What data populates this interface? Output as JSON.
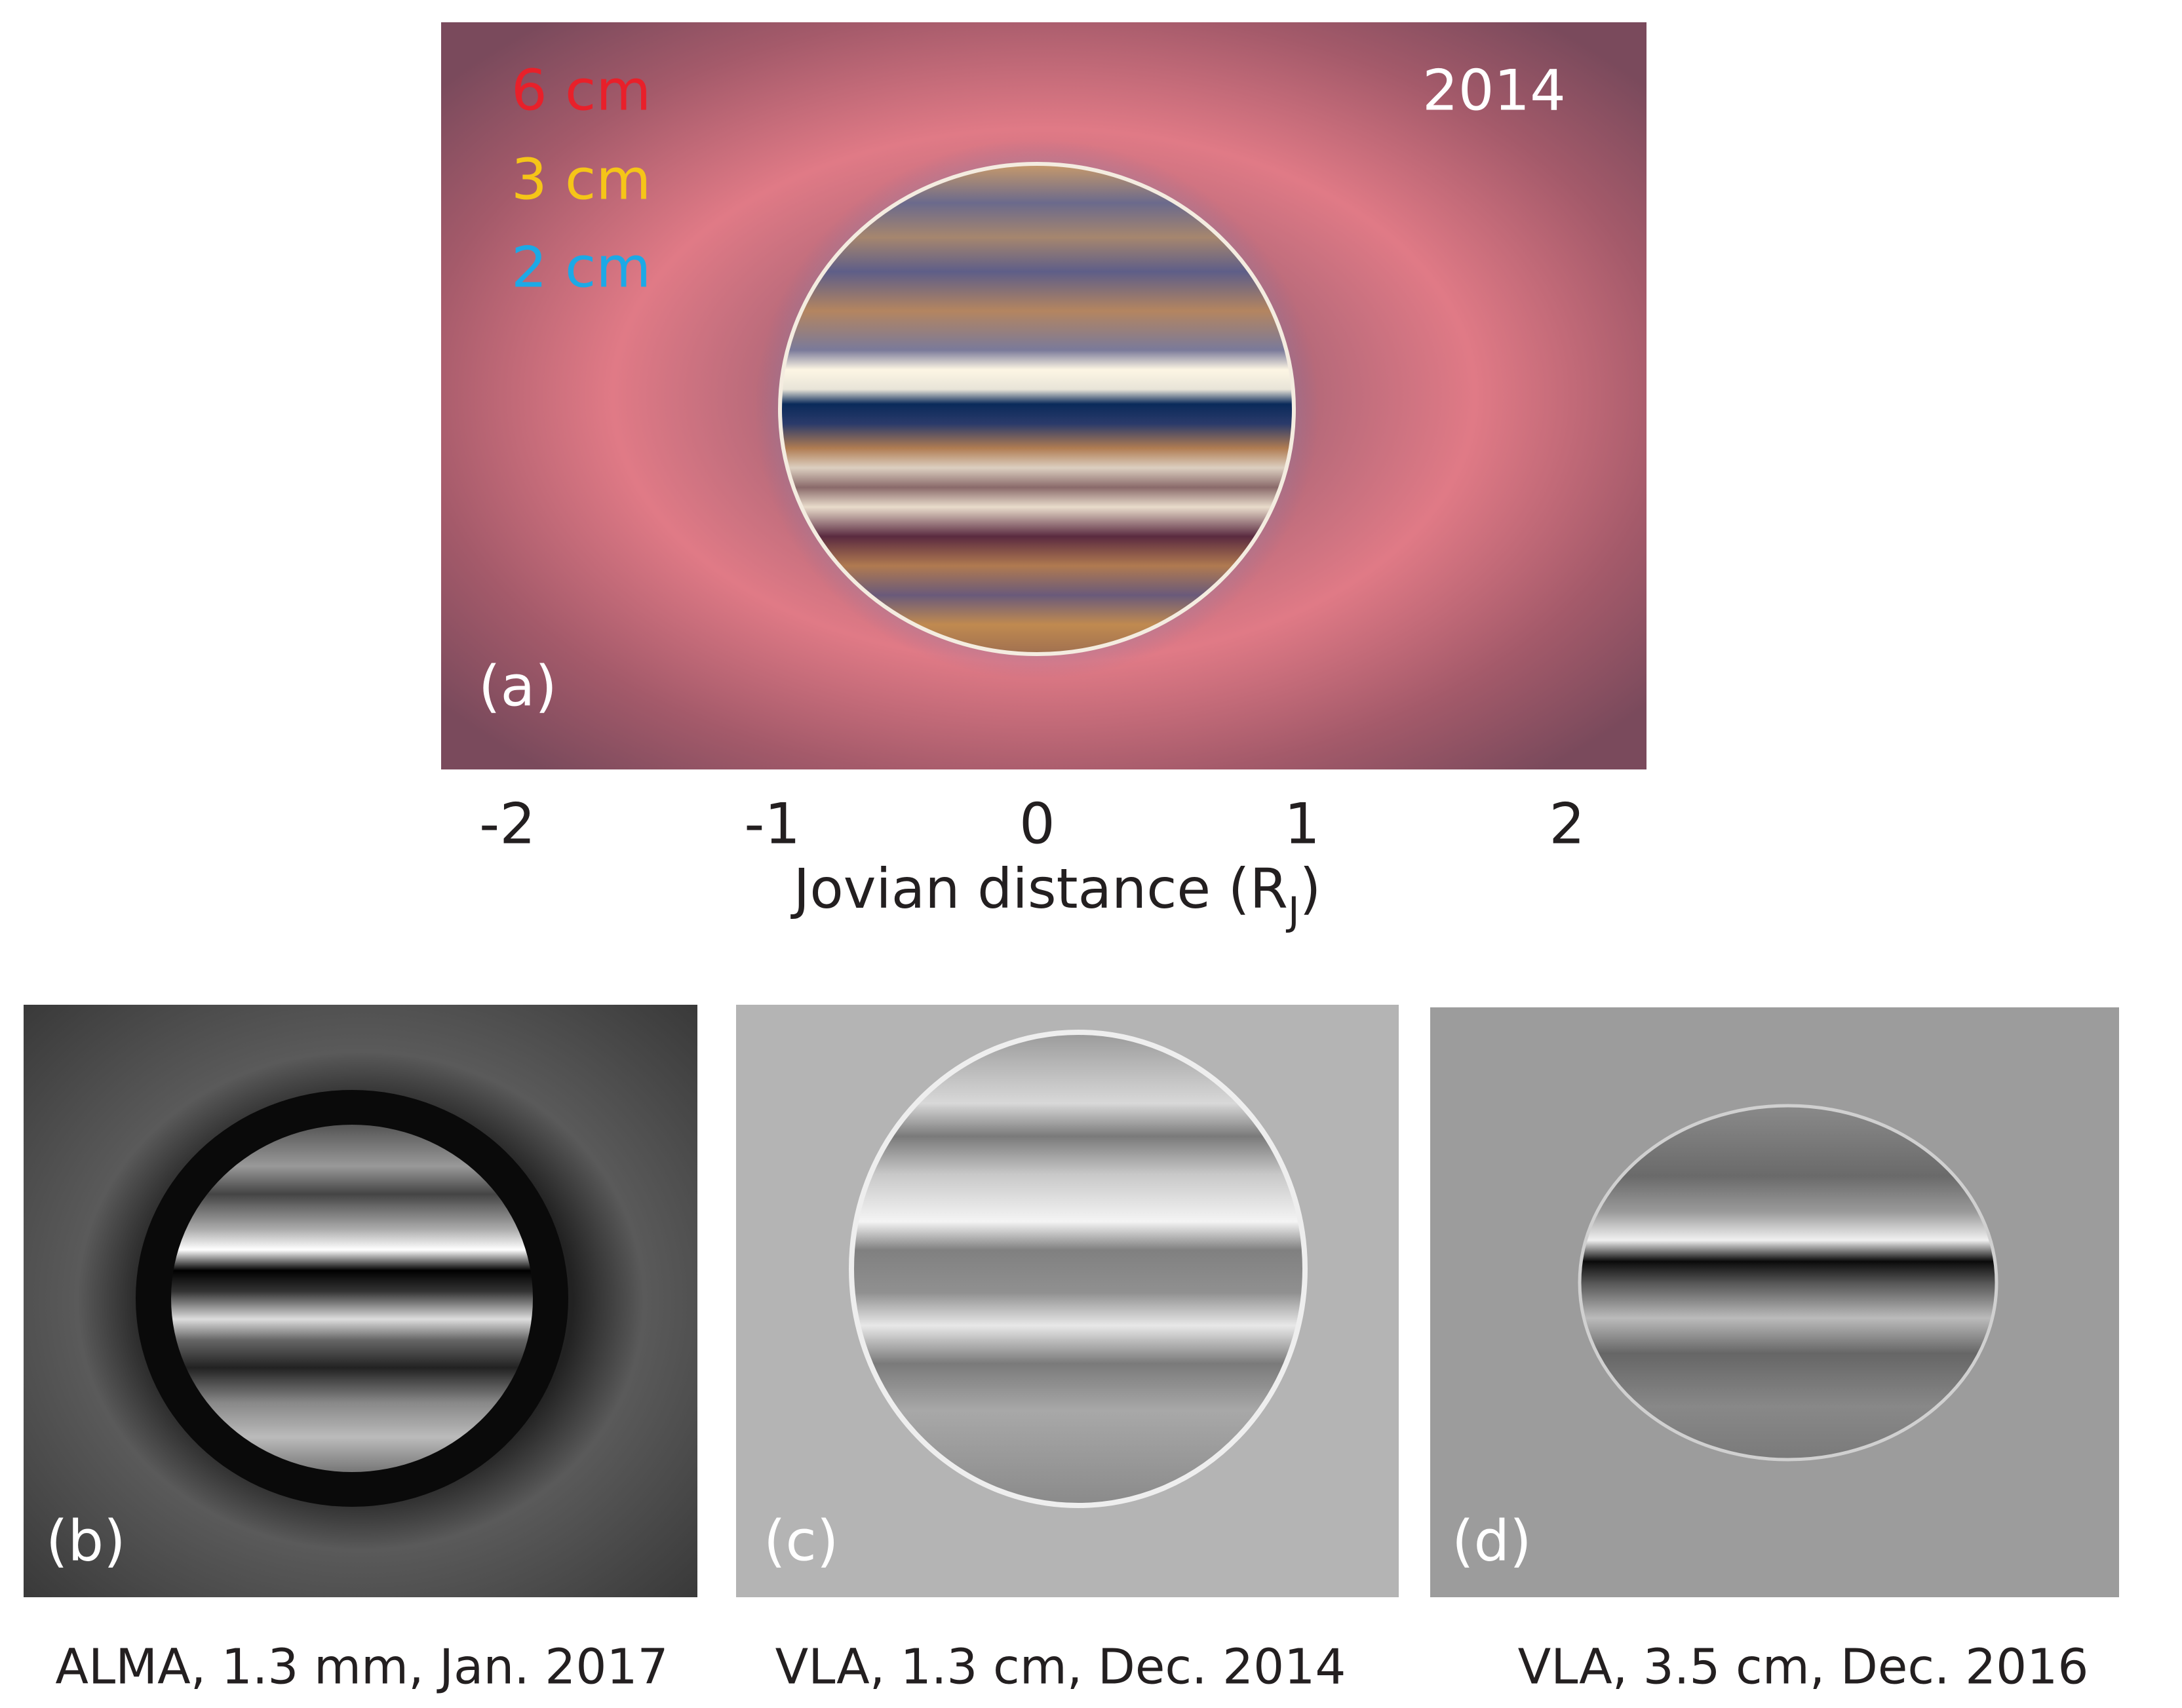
{
  "panel_a": {
    "legend": [
      "6 cm",
      "3 cm",
      "2 cm"
    ],
    "legend_colors": [
      "#e8202a",
      "#f5c518",
      "#1ca9e6"
    ],
    "year": "2014",
    "label": "(a)",
    "x_axis": {
      "xlim": [
        -2.25,
        2.3
      ],
      "xticks": [
        -2,
        -1,
        0,
        1,
        2
      ],
      "label": "Jovian distance (R",
      "label_subscript": "J",
      "label_end": ")"
    }
  },
  "panels": [
    {
      "label": "(b)",
      "caption": "ALMA, 1.3 mm, Jan. 2017"
    },
    {
      "label": "(c)",
      "caption": "VLA, 1.3 cm, Dec. 2014"
    },
    {
      "label": "(d)",
      "caption": "VLA, 3.5 cm,  Dec. 2016"
    }
  ]
}
